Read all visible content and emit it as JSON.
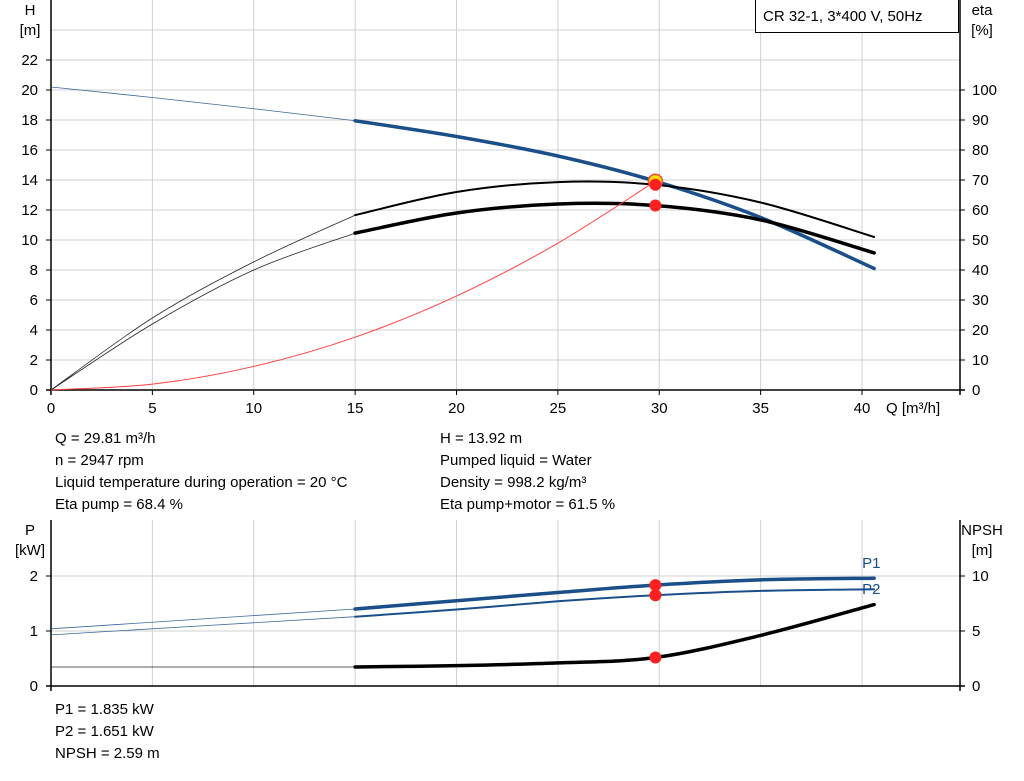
{
  "legend_box": "CR 32-1, 3*400 V, 50Hz",
  "colors": {
    "head": "#1a4f8a",
    "eta": "#000000",
    "system": "#ff4040",
    "point": "#ff2020",
    "grid": "#d0d0d0",
    "power": "#1a4f8a",
    "npsh": "#000000"
  },
  "info_top": {
    "left": [
      "Q = 29.81 m³/h",
      "n = 2947 rpm",
      "Liquid temperature during operation = 20 °C",
      "Eta pump = 68.4 %"
    ],
    "right": [
      "H = 13.92 m",
      "Pumped liquid = Water",
      "Density = 998.2 kg/m³",
      "Eta pump+motor = 61.5 %"
    ]
  },
  "info_bottom": [
    "P1 = 1.835 kW",
    "P2 = 1.651 kW",
    "NPSH = 2.59 m"
  ],
  "chart_data": [
    {
      "type": "line",
      "x_label": "Q [m³/h]",
      "xlim": [
        0,
        40
      ],
      "x_ticks": [
        0,
        5,
        10,
        15,
        20,
        25,
        30,
        35,
        40
      ],
      "y_label_left": [
        "H",
        "[m]"
      ],
      "y_left_ticks": [
        0,
        2,
        4,
        6,
        8,
        10,
        12,
        14,
        16,
        18,
        20,
        22
      ],
      "y_label_right": [
        "eta",
        "[%]"
      ],
      "y_right_ticks": [
        0,
        10,
        20,
        30,
        40,
        50,
        60,
        70,
        80,
        90,
        100
      ],
      "grid": true,
      "series": [
        {
          "key": "H",
          "axis": "left",
          "color": "#1a4f8a",
          "x": [
            0,
            5,
            10,
            15,
            20,
            25,
            29.81,
            35,
            40.6
          ],
          "y": [
            20.2,
            19.5,
            18.75,
            17.95,
            16.9,
            15.6,
            13.92,
            11.5,
            8.1
          ]
        },
        {
          "key": "eta_pump",
          "axis": "right",
          "color": "#000000",
          "x": [
            0,
            5,
            10,
            15,
            20,
            25,
            29.81,
            35,
            40.6
          ],
          "y": [
            0,
            24,
            42.7,
            58.3,
            66,
            69.3,
            68.4,
            62.5,
            51
          ]
        },
        {
          "key": "eta_pump_motor",
          "axis": "right",
          "color": "#000000",
          "x": [
            0,
            5,
            10,
            15,
            20,
            25,
            29.81,
            35,
            40.6
          ],
          "y": [
            0,
            22,
            40,
            52.3,
            59,
            62,
            61.5,
            56.7,
            45.7
          ]
        },
        {
          "key": "system",
          "axis": "left",
          "color": "#ff4040",
          "x": [
            0,
            5,
            10,
            15,
            20,
            25,
            29.81
          ],
          "y": [
            0,
            0.39,
            1.57,
            3.52,
            6.26,
            9.79,
            13.92
          ]
        }
      ],
      "duty_points": [
        {
          "axis": "left",
          "x": 29.81,
          "y": 13.92
        },
        {
          "axis": "right",
          "x": 29.81,
          "y": 68.4
        },
        {
          "axis": "right",
          "x": 29.81,
          "y": 61.5
        }
      ]
    },
    {
      "type": "line",
      "xlim": [
        0,
        40
      ],
      "x_ticks": [
        0,
        5,
        10,
        15,
        20,
        25,
        30,
        35,
        40
      ],
      "y_label_left": [
        "P",
        "[kW]"
      ],
      "y_left_ticks": [
        0,
        1,
        2
      ],
      "y_label_right": [
        "NPSH",
        "[m]"
      ],
      "y_right_ticks": [
        0,
        5,
        10
      ],
      "grid": true,
      "series": [
        {
          "name": "P1",
          "axis": "left",
          "color": "#1a4f8a",
          "x": [
            0,
            15,
            20,
            25,
            29.81,
            35,
            40.6
          ],
          "y": [
            1.04,
            1.4,
            1.55,
            1.7,
            1.835,
            1.93,
            1.96
          ]
        },
        {
          "name": "P2",
          "axis": "left",
          "color": "#1a4f8a",
          "x": [
            0,
            15,
            20,
            25,
            29.81,
            35,
            40.6
          ],
          "y": [
            0.93,
            1.26,
            1.39,
            1.54,
            1.651,
            1.73,
            1.76
          ]
        },
        {
          "key": "NPSH",
          "axis": "right",
          "color": "#000000",
          "x": [
            0,
            15,
            20,
            25,
            29.81,
            35,
            40.6
          ],
          "y": [
            1.73,
            1.73,
            1.85,
            2.1,
            2.59,
            4.6,
            7.4
          ]
        }
      ],
      "duty_points": [
        {
          "axis": "left",
          "x": 29.81,
          "y": 1.835
        },
        {
          "axis": "left",
          "x": 29.81,
          "y": 1.651
        },
        {
          "axis": "right",
          "x": 29.81,
          "y": 2.59
        }
      ]
    }
  ]
}
